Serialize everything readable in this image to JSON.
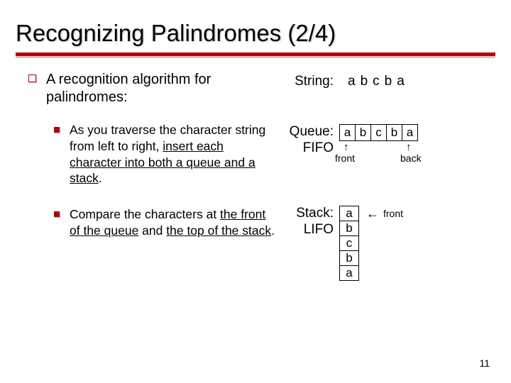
{
  "title": "Recognizing Palindromes (2/4)",
  "main_point": "A recognition algorithm for palindromes:",
  "sub1_pre": "As you traverse the character string from left to right, ",
  "sub1_u1": "insert each character into both a queue and a stack",
  "sub1_post": ".",
  "sub2_pre": "Compare the characters at ",
  "sub2_u1": "the front of the queue",
  "sub2_mid": " and ",
  "sub2_u2": "the top of the stack",
  "sub2_post": ".",
  "string_label": "String:",
  "string_chars": "abcba",
  "queue_label1": "Queue:",
  "queue_label2": "FIFO",
  "queue_cells": [
    "a",
    "b",
    "c",
    "b",
    "a"
  ],
  "front_label": "front",
  "back_label": "back",
  "stack_label1": "Stack:",
  "stack_label2": "LIFO",
  "stack_cells": [
    "a",
    "b",
    "c",
    "b",
    "a"
  ],
  "page_number": "11",
  "colors": {
    "accent": "#b80000",
    "text": "#000000",
    "bg": "#ffffff",
    "shadow_line": "#c8c8c8"
  }
}
